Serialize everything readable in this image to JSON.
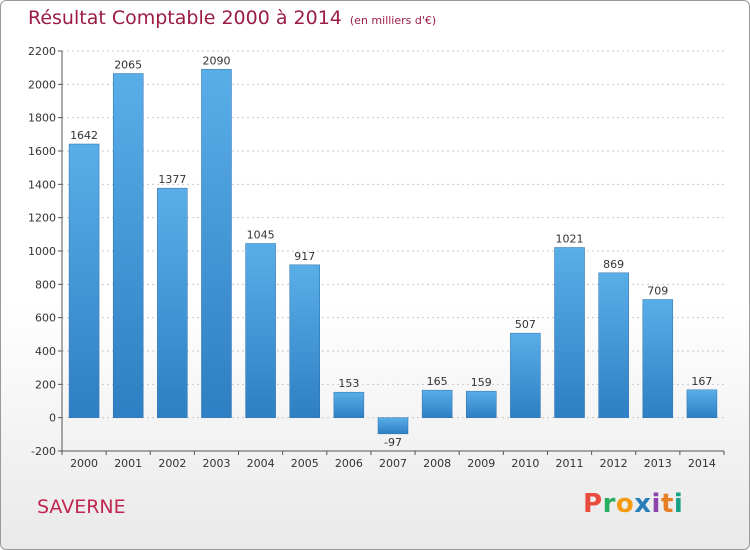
{
  "header": {
    "title": "Résultat Comptable 2000 à 2014",
    "subtitle": "(en milliers d'€)"
  },
  "footer": {
    "commune": "SAVERNE",
    "logo": "Proxiti",
    "logo_colors": [
      "#e74c3c",
      "#27ae60",
      "#f39c12",
      "#2980b9",
      "#8e44ad",
      "#e67e22",
      "#16a085"
    ]
  },
  "chart_data": {
    "type": "bar",
    "categories": [
      "2000",
      "2001",
      "2002",
      "2003",
      "2004",
      "2005",
      "2006",
      "2007",
      "2008",
      "2009",
      "2010",
      "2011",
      "2012",
      "2013",
      "2014"
    ],
    "values": [
      1642,
      2065,
      1377,
      2090,
      1045,
      917,
      153,
      -97,
      165,
      159,
      507,
      1021,
      869,
      709,
      167
    ],
    "title": "Résultat Comptable 2000 à 2014",
    "xlabel": "",
    "ylabel": "",
    "ylim": [
      -200,
      2200
    ],
    "yticks": [
      -200,
      0,
      200,
      400,
      600,
      800,
      1000,
      1200,
      1400,
      1600,
      1800,
      2000,
      2200
    ],
    "grid": true,
    "bar_color": "#3d8fd6"
  }
}
